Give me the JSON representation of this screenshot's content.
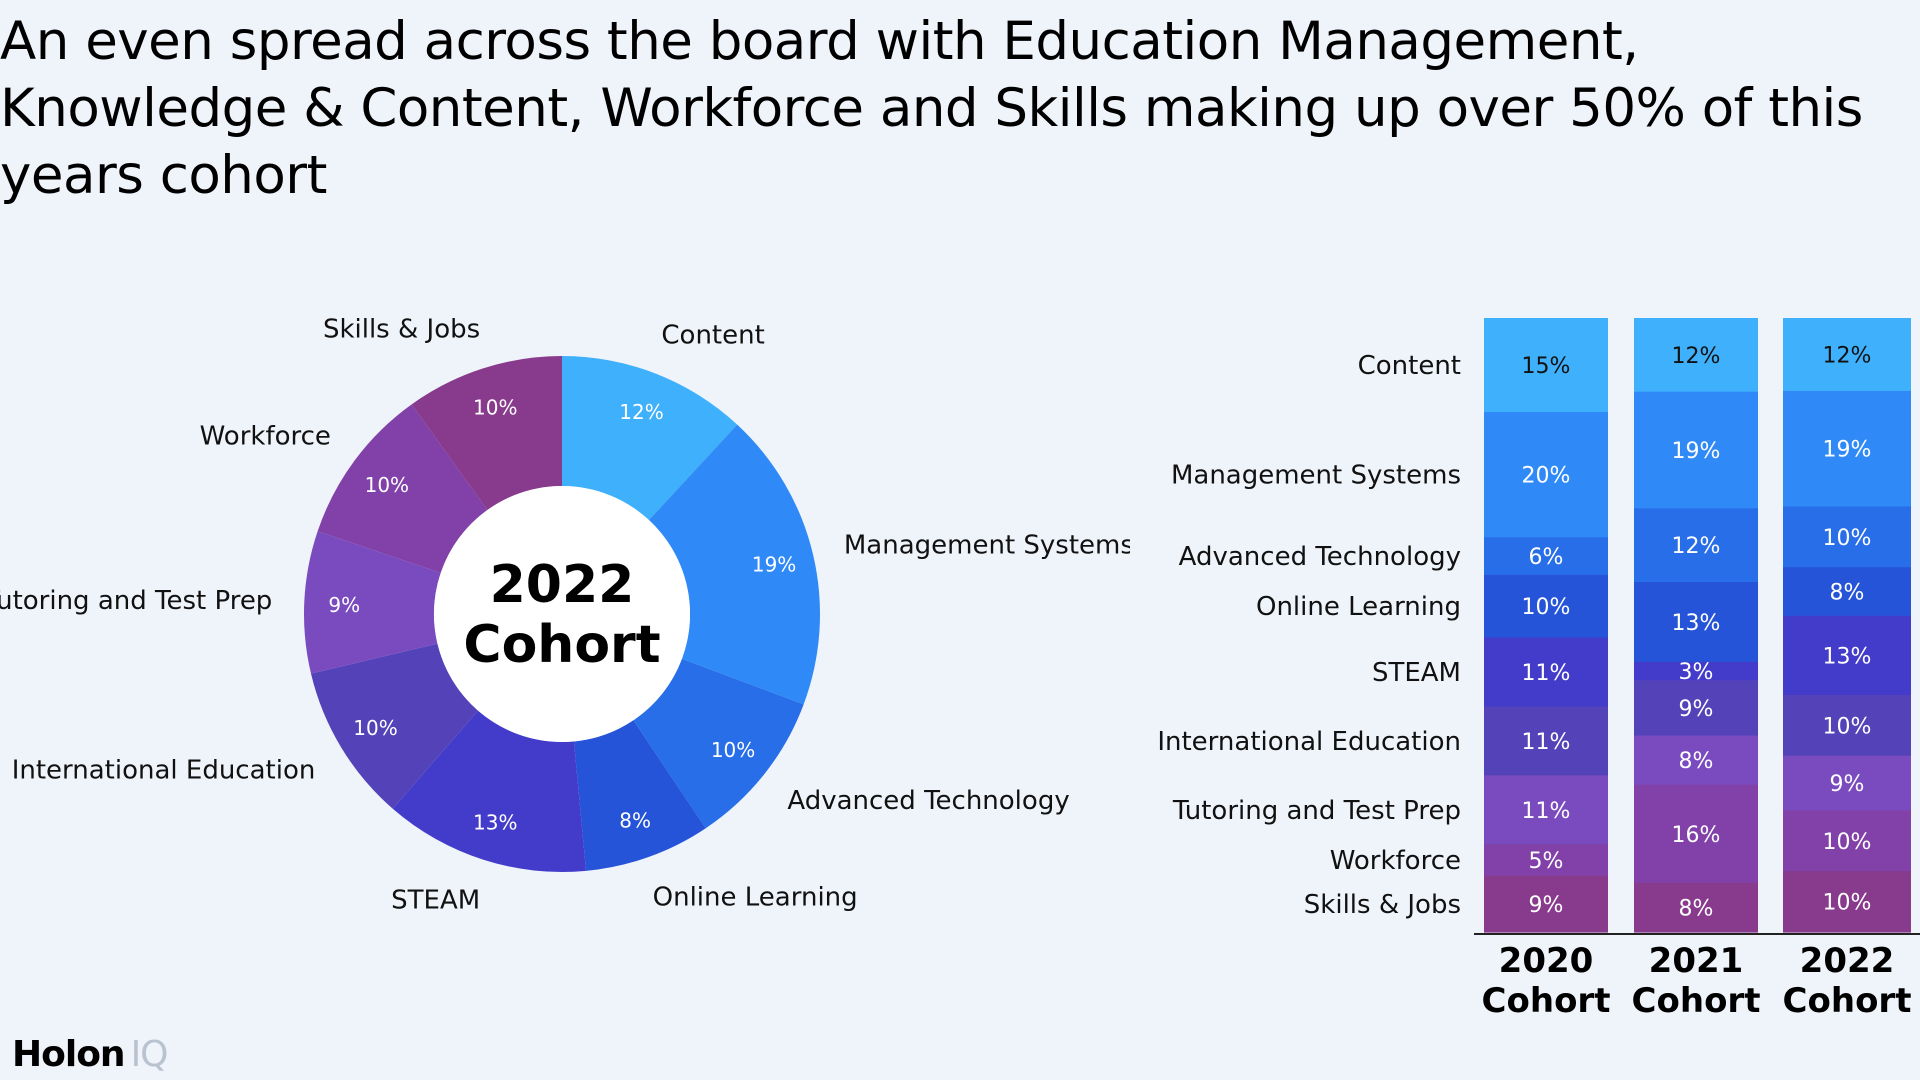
{
  "title": "An even spread across the board with Education Management, Knowledge & Content, Workforce and Skills making up over 50% of this years cohort",
  "logo": {
    "text": "Holon",
    "suffix": "IQ"
  },
  "chart_data": [
    {
      "type": "pie",
      "center_label": [
        "2022",
        "Cohort"
      ],
      "slices": [
        {
          "label": "Content",
          "value": 12,
          "value_label": "12%",
          "color": "#3fb0fb"
        },
        {
          "label": "Management Systems",
          "value": 19,
          "value_label": "19%",
          "color": "#2f8af7"
        },
        {
          "label": "Advanced Technology",
          "value": 10,
          "value_label": "10%",
          "color": "#286ee9"
        },
        {
          "label": "Online Learning",
          "value": 8,
          "value_label": "8%",
          "color": "#2654d8"
        },
        {
          "label": "STEAM",
          "value": 13,
          "value_label": "13%",
          "color": "#433ccb"
        },
        {
          "label": "International Education",
          "value": 10,
          "value_label": "10%",
          "color": "#5442b9"
        },
        {
          "label": "Tutoring and Test Prep",
          "value": 9,
          "value_label": "9%",
          "color": "#7a4bbf"
        },
        {
          "label": "Workforce",
          "value": 10,
          "value_label": "10%",
          "color": "#8141a8"
        },
        {
          "label": "Skills & Jobs",
          "value": 10,
          "value_label": "10%",
          "color": "#883a8d"
        }
      ]
    },
    {
      "type": "bar",
      "stacked": true,
      "categories": [
        "Content",
        "Management Systems",
        "Advanced Technology",
        "Online Learning",
        "STEAM",
        "International Education",
        "Tutoring and Test Prep",
        "Workforce",
        "Skills & Jobs"
      ],
      "colors": [
        "#3fb0fb",
        "#2f8af7",
        "#286ee9",
        "#2654d8",
        "#433ccb",
        "#5442b9",
        "#7a4bbf",
        "#8141a8",
        "#883a8d"
      ],
      "series": [
        {
          "name": "2020 Cohort",
          "label_lines": [
            "2020",
            "Cohort"
          ],
          "values": [
            15,
            20,
            6,
            10,
            11,
            11,
            11,
            5,
            9
          ],
          "value_labels": [
            "15%",
            "20%",
            "6%",
            "10%",
            "11%",
            "11%",
            "11%",
            "5%",
            "9%"
          ]
        },
        {
          "name": "2021 Cohort",
          "label_lines": [
            "2021",
            "Cohort"
          ],
          "values": [
            12,
            19,
            12,
            13,
            3,
            9,
            8,
            16,
            8
          ],
          "value_labels": [
            "12%",
            "19%",
            "12%",
            "13%",
            "3%",
            "9%",
            "8%",
            "16%",
            "8%"
          ]
        },
        {
          "name": "2022 Cohort",
          "label_lines": [
            "2022",
            "Cohort"
          ],
          "values": [
            12,
            19,
            10,
            8,
            13,
            10,
            9,
            10,
            10
          ],
          "value_labels": [
            "12%",
            "19%",
            "10%",
            "8%",
            "13%",
            "10%",
            "9%",
            "10%",
            "10%"
          ]
        }
      ]
    }
  ]
}
